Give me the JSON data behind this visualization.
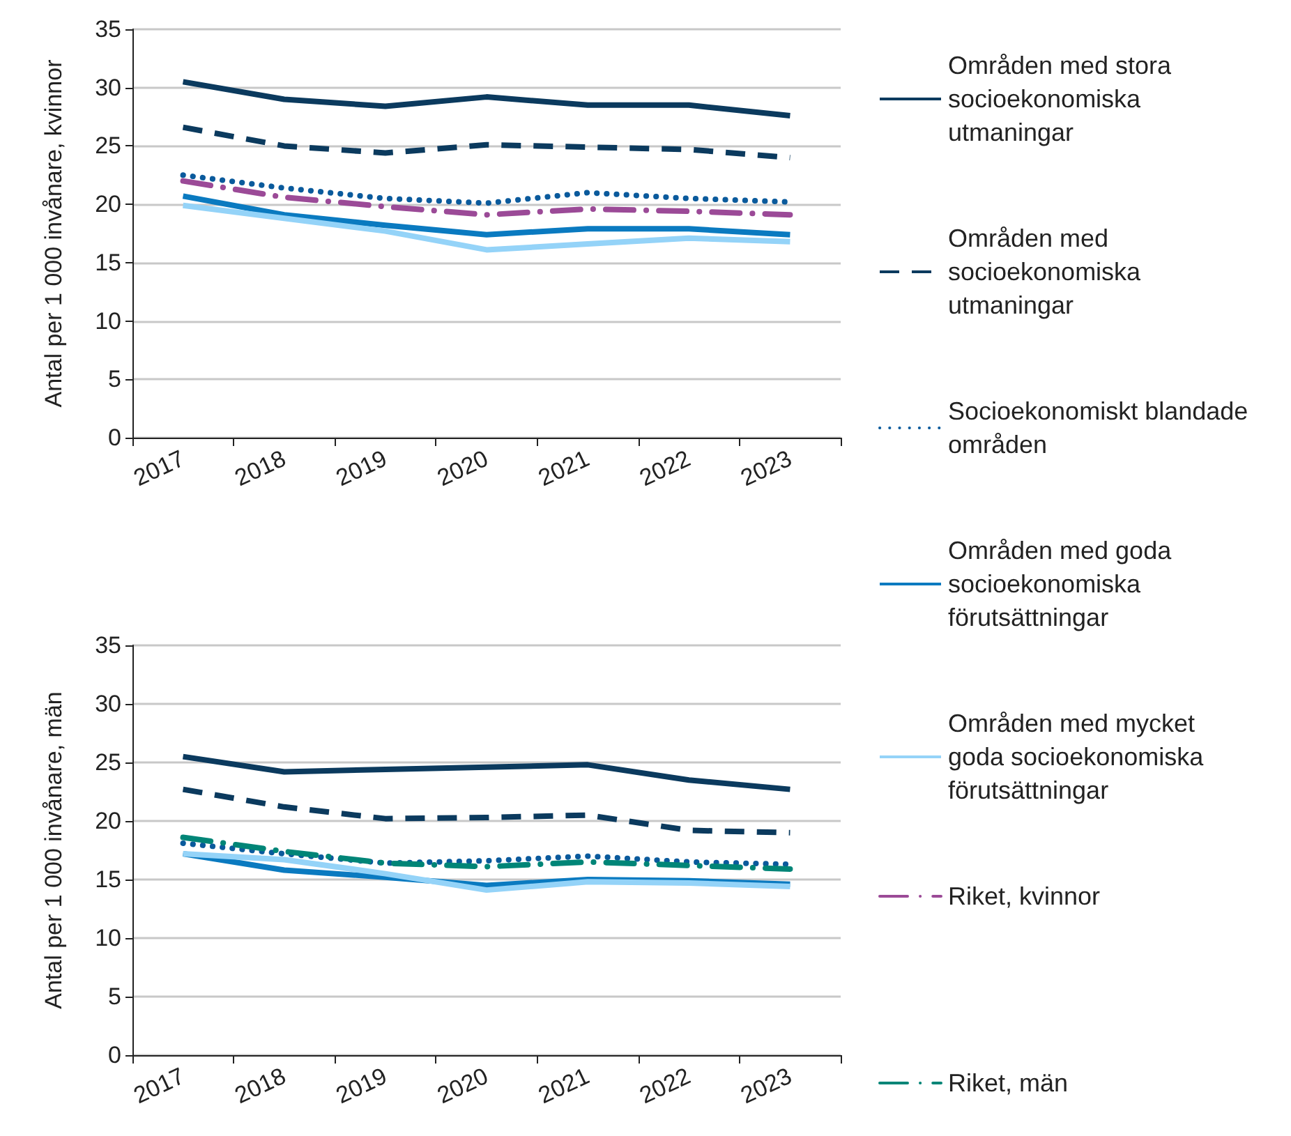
{
  "chart_data": [
    {
      "type": "line",
      "ylabel": "Antal per 1 000 invånare, kvinnor",
      "categories": [
        "2017",
        "2018",
        "2019",
        "2020",
        "2021",
        "2022",
        "2023"
      ],
      "ylim": [
        0,
        35
      ],
      "yticks": [
        0,
        5,
        10,
        15,
        20,
        25,
        30,
        35
      ],
      "grid": "y",
      "legend": "right",
      "marker": "none",
      "series": [
        {
          "name": "Områden med stora socioekonomiska utmaningar",
          "color": "#0b3a5e",
          "line_style": "solid",
          "values": [
            30.5,
            29.0,
            28.4,
            29.2,
            28.5,
            28.5,
            27.6
          ]
        },
        {
          "name": "Områden med socioekonomiska utmaningar",
          "color": "#0b3a5e",
          "line_style": "dashed",
          "values": [
            26.6,
            25.0,
            24.4,
            25.1,
            24.9,
            24.7,
            24.0
          ]
        },
        {
          "name": "Socioekonomiskt blandade områden",
          "color": "#0a5a9c",
          "line_style": "dotted",
          "values": [
            22.5,
            21.4,
            20.5,
            20.1,
            21.0,
            20.5,
            20.2
          ]
        },
        {
          "name": "Områden med goda socioekonomiska förutsättningar",
          "color": "#0a7ac0",
          "line_style": "solid",
          "values": [
            20.7,
            19.1,
            18.2,
            17.4,
            17.9,
            17.9,
            17.4
          ]
        },
        {
          "name": "Områden med mycket goda socioekonomiska förutsättningar",
          "color": "#94d3f8",
          "line_style": "solid",
          "values": [
            19.9,
            18.8,
            17.7,
            16.1,
            16.6,
            17.1,
            16.8
          ]
        },
        {
          "name": "Riket, kvinnor",
          "color": "#9b4a97",
          "line_style": "dashdot",
          "values": [
            22.0,
            20.6,
            19.8,
            19.1,
            19.6,
            19.4,
            19.1
          ]
        }
      ]
    },
    {
      "type": "line",
      "ylabel": "Antal per 1 000 invånare, män",
      "categories": [
        "2017",
        "2018",
        "2019",
        "2020",
        "2021",
        "2022",
        "2023"
      ],
      "ylim": [
        0,
        35
      ],
      "yticks": [
        0,
        5,
        10,
        15,
        20,
        25,
        30,
        35
      ],
      "grid": "y",
      "legend": "right",
      "marker": "none",
      "series": [
        {
          "name": "Områden med stora socioekonomiska utmaningar",
          "color": "#0b3a5e",
          "line_style": "solid",
          "values": [
            25.5,
            24.2,
            24.4,
            24.6,
            24.8,
            23.5,
            22.7
          ]
        },
        {
          "name": "Områden med socioekonomiska utmaningar",
          "color": "#0b3a5e",
          "line_style": "dashed",
          "values": [
            22.7,
            21.2,
            20.2,
            20.3,
            20.5,
            19.2,
            19.0
          ]
        },
        {
          "name": "Socioekonomiskt blandade områden",
          "color": "#0a5a9c",
          "line_style": "dotted",
          "values": [
            18.1,
            17.2,
            16.4,
            16.6,
            17.0,
            16.5,
            16.3
          ]
        },
        {
          "name": "Områden med goda socioekonomiska förutsättningar",
          "color": "#0a7ac0",
          "line_style": "solid",
          "values": [
            17.2,
            15.8,
            15.2,
            14.5,
            15.0,
            14.9,
            14.6
          ]
        },
        {
          "name": "Områden med mycket goda socioekonomiska förutsättningar",
          "color": "#94d3f8",
          "line_style": "solid",
          "values": [
            17.2,
            16.7,
            15.5,
            14.1,
            14.8,
            14.7,
            14.4
          ]
        },
        {
          "name": "Riket, män",
          "color": "#008577",
          "line_style": "dashdot",
          "values": [
            18.6,
            17.4,
            16.4,
            16.1,
            16.5,
            16.2,
            15.9
          ]
        }
      ]
    }
  ]
}
